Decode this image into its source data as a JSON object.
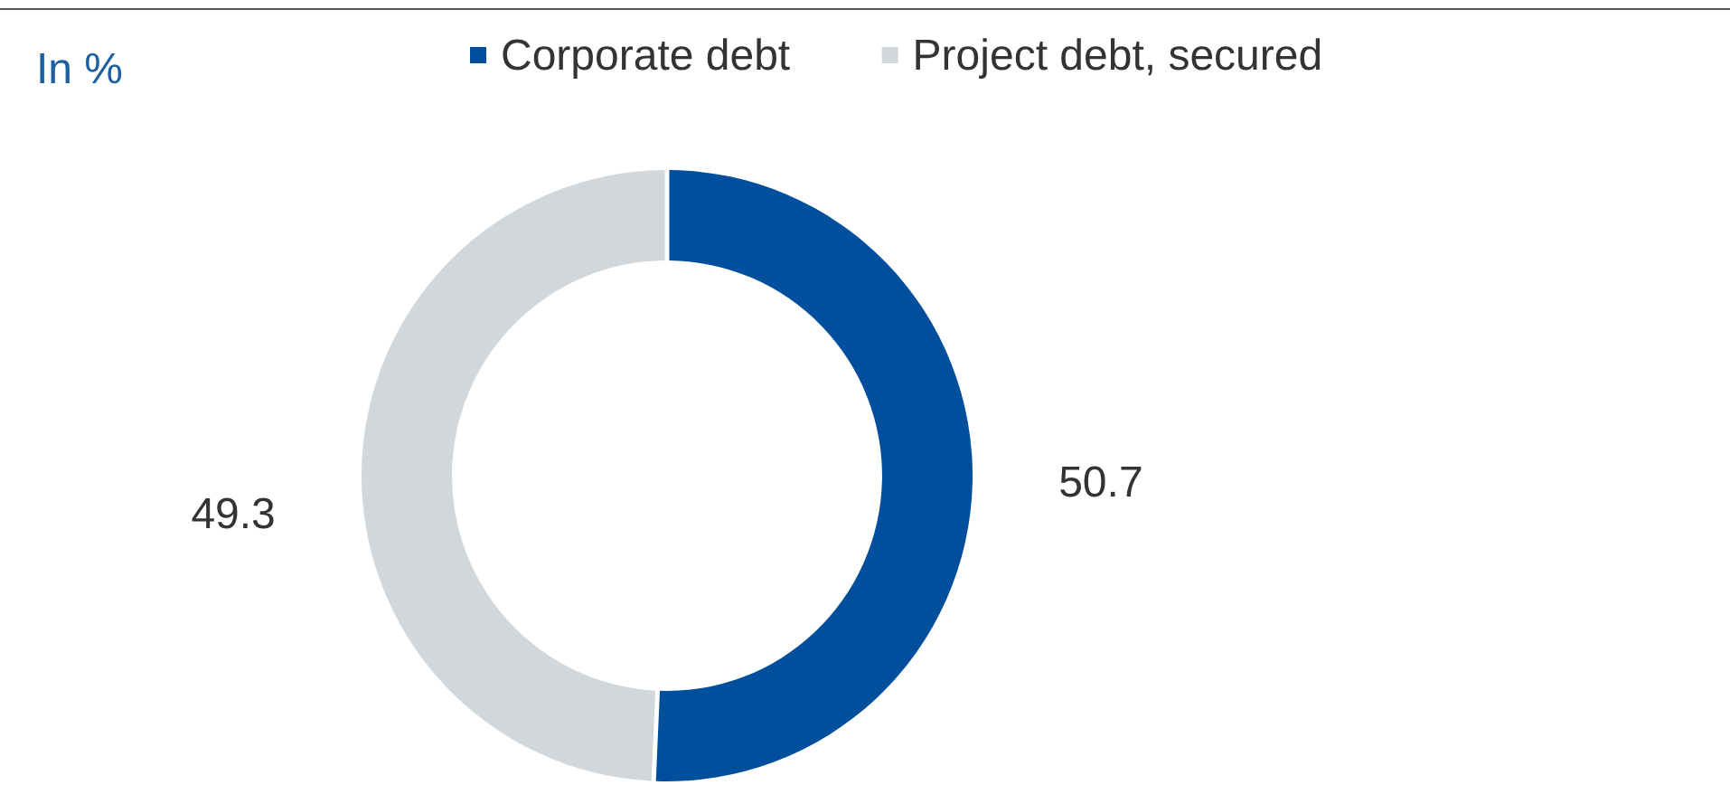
{
  "chart_data": {
    "type": "donut",
    "title": "In %",
    "categories": [
      "Corporate debt",
      "Project debt, secured"
    ],
    "values": [
      50.7,
      49.3
    ],
    "colors": [
      "#004f9c",
      "#d1d7db"
    ],
    "data_labels": true,
    "legend": "top"
  }
}
